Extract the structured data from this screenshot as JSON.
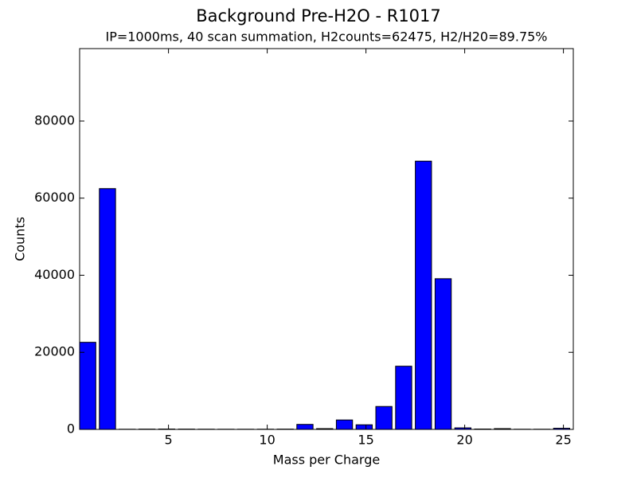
{
  "chart_data": {
    "type": "bar",
    "title": "Background Pre-H2O - R1017",
    "subtitle": "IP=1000ms, 40 scan summation, H2counts=62475, H2/H20=89.75%",
    "xlabel": "Mass per Charge",
    "ylabel": "Counts",
    "x": [
      1,
      2,
      3,
      4,
      5,
      6,
      7,
      8,
      9,
      10,
      11,
      12,
      13,
      14,
      15,
      16,
      17,
      18,
      19,
      20,
      21,
      22,
      23,
      24,
      25
    ],
    "values": [
      22600,
      62475,
      50,
      80,
      100,
      80,
      60,
      50,
      50,
      60,
      80,
      1300,
      200,
      2450,
      1200,
      5950,
      16400,
      69600,
      39100,
      400,
      100,
      200,
      50,
      50,
      300
    ],
    "color": "#0000ff",
    "xlim": [
      0.5,
      25.5
    ],
    "xticks": [
      5,
      10,
      15,
      20,
      25
    ],
    "ylim": [
      0,
      98800
    ],
    "yticks": [
      0,
      20000,
      40000,
      60000,
      80000
    ],
    "grid": false
  }
}
